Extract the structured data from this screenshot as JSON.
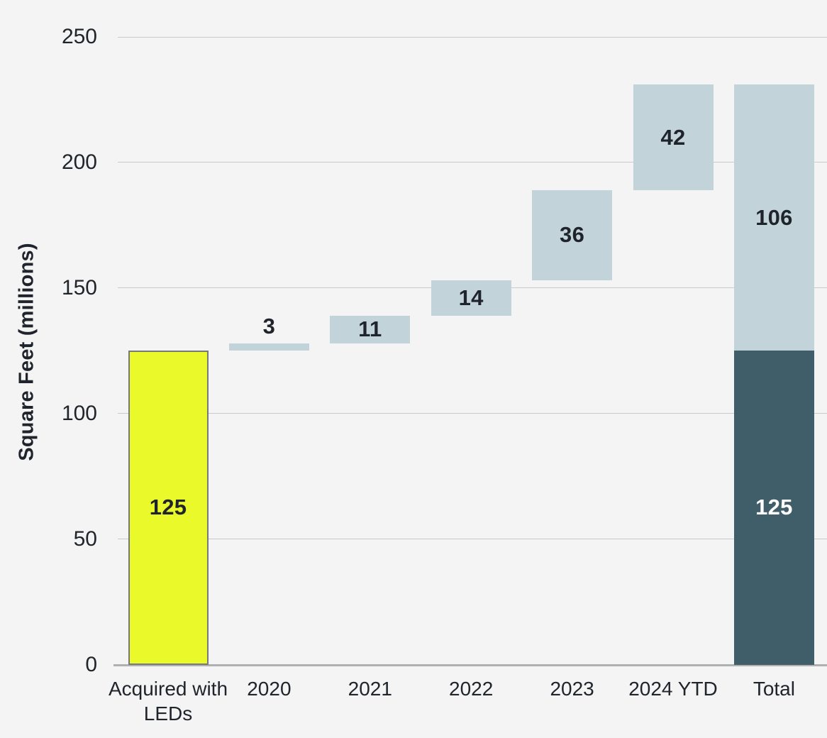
{
  "chart_data": {
    "type": "bar",
    "subtype": "waterfall",
    "title": "",
    "xlabel": "",
    "ylabel": "Square Feet (millions)",
    "ylim": [
      0,
      250
    ],
    "yticks": [
      0,
      50,
      100,
      150,
      200,
      250
    ],
    "grid": "horizontal",
    "legend": "none",
    "categories": [
      "Acquired with LEDs",
      "2020",
      "2021",
      "2022",
      "2023",
      "2024 YTD",
      "Total"
    ],
    "segments": [
      {
        "category": "Acquired with LEDs",
        "column": 0,
        "from": 0,
        "to": 125,
        "value": 125,
        "label": "125",
        "color_key": "yellow",
        "border": true,
        "label_position": "center",
        "label_color_key": "dark"
      },
      {
        "category": "2020",
        "column": 1,
        "from": 125,
        "to": 128,
        "value": 3,
        "label": "3",
        "color_key": "light_blue",
        "border": false,
        "label_position": "above",
        "label_color_key": "dark"
      },
      {
        "category": "2021",
        "column": 2,
        "from": 128,
        "to": 139,
        "value": 11,
        "label": "11",
        "color_key": "light_blue",
        "border": false,
        "label_position": "center",
        "label_color_key": "dark"
      },
      {
        "category": "2022",
        "column": 3,
        "from": 139,
        "to": 153,
        "value": 14,
        "label": "14",
        "color_key": "light_blue",
        "border": false,
        "label_position": "center",
        "label_color_key": "dark"
      },
      {
        "category": "2023",
        "column": 4,
        "from": 153,
        "to": 189,
        "value": 36,
        "label": "36",
        "color_key": "light_blue",
        "border": false,
        "label_position": "center",
        "label_color_key": "dark"
      },
      {
        "category": "2024 YTD",
        "column": 5,
        "from": 189,
        "to": 231,
        "value": 42,
        "label": "42",
        "color_key": "light_blue",
        "border": false,
        "label_position": "center",
        "label_color_key": "dark"
      },
      {
        "category": "Total",
        "column": 6,
        "from": 0,
        "to": 125,
        "value": 125,
        "label": "125",
        "color_key": "dark_teal",
        "border": false,
        "label_position": "center",
        "label_color_key": "white"
      },
      {
        "category": "Total",
        "column": 6,
        "from": 125,
        "to": 231,
        "value": 106,
        "label": "106",
        "color_key": "light_blue",
        "border": false,
        "label_position": "center",
        "label_color_key": "dark"
      }
    ],
    "colors": {
      "yellow": "#E9F92A",
      "yellow_border": "#77787B",
      "light_blue": "#C2D4DA",
      "dark_teal": "#3F5E69",
      "dark": "#1F242C",
      "white": "#FFFFFF",
      "gridline": "#C9CACB",
      "axis_line": "#AFB0B2",
      "background": "#F4F4F4"
    }
  }
}
